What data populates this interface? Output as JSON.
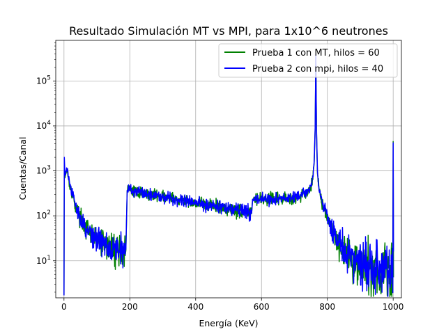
{
  "chart_data": {
    "type": "line",
    "title": "Resultado Simulación MT vs MPI, para 1x10^6 neutrones",
    "xlabel": "Energía (KeV)",
    "ylabel": "Cuentas/Canal",
    "xlim": [
      -25,
      1025
    ],
    "ylim": [
      1.5,
      800000
    ],
    "yscale": "log",
    "grid": true,
    "legend_position": "top-right",
    "x_ticks": [
      0,
      200,
      400,
      600,
      800,
      1000
    ],
    "x_tick_labels": [
      "0",
      "200",
      "400",
      "600",
      "800",
      "1000"
    ],
    "y_ticks": [
      10,
      100,
      1000,
      10000,
      100000
    ],
    "y_tick_labels": [
      {
        "base": "10",
        "exp": "1"
      },
      {
        "base": "10",
        "exp": "2"
      },
      {
        "base": "10",
        "exp": "3"
      },
      {
        "base": "10",
        "exp": "4"
      },
      {
        "base": "10",
        "exp": "5"
      }
    ],
    "series": [
      {
        "name": "Prueba 1 con MT, hilos = 60",
        "color": "#008000",
        "points": [
          [
            0,
            1.7
          ],
          [
            1,
            1300
          ],
          [
            3,
            700
          ],
          [
            6,
            950
          ],
          [
            10,
            1050
          ],
          [
            15,
            600
          ],
          [
            20,
            400
          ],
          [
            30,
            220
          ],
          [
            40,
            130
          ],
          [
            50,
            90
          ],
          [
            60,
            65
          ],
          [
            70,
            45
          ],
          [
            80,
            38
          ],
          [
            90,
            33
          ],
          [
            100,
            30
          ],
          [
            110,
            26
          ],
          [
            120,
            24
          ],
          [
            130,
            22
          ],
          [
            140,
            20
          ],
          [
            150,
            19
          ],
          [
            160,
            18
          ],
          [
            170,
            17
          ],
          [
            180,
            16
          ],
          [
            188,
            17
          ],
          [
            192,
            360
          ],
          [
            200,
            380
          ],
          [
            220,
            340
          ],
          [
            250,
            310
          ],
          [
            280,
            290
          ],
          [
            300,
            270
          ],
          [
            330,
            240
          ],
          [
            360,
            220
          ],
          [
            400,
            195
          ],
          [
            430,
            180
          ],
          [
            460,
            165
          ],
          [
            500,
            145
          ],
          [
            530,
            130
          ],
          [
            560,
            120
          ],
          [
            570,
            112
          ],
          [
            573,
            230
          ],
          [
            590,
            235
          ],
          [
            620,
            230
          ],
          [
            650,
            235
          ],
          [
            680,
            240
          ],
          [
            700,
            250
          ],
          [
            720,
            280
          ],
          [
            740,
            340
          ],
          [
            750,
            450
          ],
          [
            756,
            700
          ],
          [
            760,
            1500
          ],
          [
            763,
            8000
          ],
          [
            765,
            350000
          ],
          [
            767,
            8000
          ],
          [
            770,
            900
          ],
          [
            775,
            400
          ],
          [
            780,
            250
          ],
          [
            790,
            150
          ],
          [
            800,
            95
          ],
          [
            810,
            60
          ],
          [
            820,
            40
          ],
          [
            830,
            28
          ],
          [
            840,
            22
          ],
          [
            850,
            18
          ],
          [
            860,
            14
          ],
          [
            870,
            12
          ],
          [
            880,
            10
          ],
          [
            890,
            9
          ],
          [
            900,
            8
          ],
          [
            920,
            7
          ],
          [
            940,
            6
          ],
          [
            960,
            6
          ],
          [
            980,
            5.5
          ],
          [
            999,
            5
          ],
          [
            1000,
            4500
          ],
          [
            1001,
            5
          ]
        ]
      },
      {
        "name": "Prueba 2 con mpi, hilos = 40",
        "color": "#0000ff",
        "points": [
          [
            0,
            1.7
          ],
          [
            1,
            2000
          ],
          [
            3,
            800
          ],
          [
            6,
            1000
          ],
          [
            10,
            1100
          ],
          [
            15,
            620
          ],
          [
            20,
            410
          ],
          [
            30,
            230
          ],
          [
            40,
            135
          ],
          [
            50,
            92
          ],
          [
            60,
            66
          ],
          [
            70,
            46
          ],
          [
            80,
            39
          ],
          [
            90,
            34
          ],
          [
            100,
            31
          ],
          [
            110,
            27
          ],
          [
            120,
            25
          ],
          [
            130,
            23
          ],
          [
            140,
            21
          ],
          [
            150,
            20
          ],
          [
            160,
            19
          ],
          [
            170,
            18
          ],
          [
            180,
            17
          ],
          [
            188,
            18
          ],
          [
            192,
            370
          ],
          [
            200,
            390
          ],
          [
            220,
            345
          ],
          [
            250,
            315
          ],
          [
            280,
            292
          ],
          [
            300,
            272
          ],
          [
            330,
            242
          ],
          [
            360,
            222
          ],
          [
            400,
            197
          ],
          [
            430,
            182
          ],
          [
            460,
            167
          ],
          [
            500,
            147
          ],
          [
            530,
            132
          ],
          [
            560,
            122
          ],
          [
            570,
            114
          ],
          [
            573,
            235
          ],
          [
            590,
            238
          ],
          [
            620,
            232
          ],
          [
            650,
            237
          ],
          [
            680,
            243
          ],
          [
            700,
            253
          ],
          [
            720,
            285
          ],
          [
            740,
            345
          ],
          [
            750,
            460
          ],
          [
            756,
            720
          ],
          [
            760,
            1600
          ],
          [
            763,
            9000
          ],
          [
            765,
            400000
          ],
          [
            767,
            9000
          ],
          [
            770,
            950
          ],
          [
            775,
            420
          ],
          [
            780,
            260
          ],
          [
            790,
            155
          ],
          [
            800,
            98
          ],
          [
            810,
            62
          ],
          [
            820,
            42
          ],
          [
            830,
            29
          ],
          [
            840,
            23
          ],
          [
            850,
            19
          ],
          [
            860,
            15
          ],
          [
            870,
            12.5
          ],
          [
            880,
            10.5
          ],
          [
            890,
            9.5
          ],
          [
            900,
            8.5
          ],
          [
            920,
            7.5
          ],
          [
            940,
            6.5
          ],
          [
            960,
            6.3
          ],
          [
            980,
            5.8
          ],
          [
            999,
            5.2
          ],
          [
            1000,
            4200
          ],
          [
            1001,
            5.2
          ]
        ]
      }
    ]
  }
}
